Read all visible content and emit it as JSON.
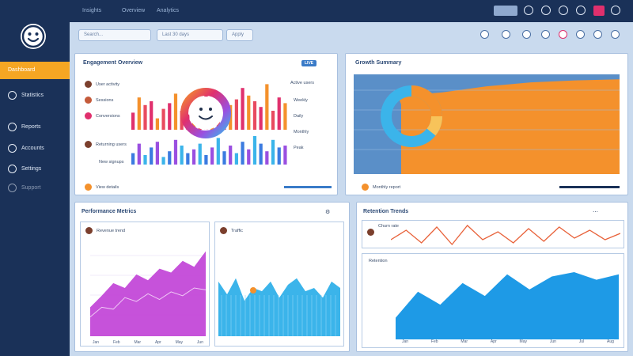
{
  "sidebar": {
    "active_label": "Dashboard",
    "items": [
      {
        "label": "Statistics",
        "icon": "circle-icon"
      },
      {
        "label": "Reports",
        "icon": "circle-icon"
      },
      {
        "label": "Accounts",
        "icon": "circle-icon"
      },
      {
        "label": "Settings",
        "icon": "circle-icon"
      },
      {
        "label": "Support",
        "icon": "circle-icon"
      }
    ]
  },
  "topbar": {
    "breadcrumb": [
      "Insights",
      "Overview",
      "Analytics"
    ],
    "buttons": [
      "search",
      "bell",
      "settings",
      "help",
      "user",
      "chat"
    ]
  },
  "filters": {
    "search_placeholder": "Search...",
    "date_range": "Last 30 days",
    "apply_label": "Apply"
  },
  "panels": {
    "top_left": {
      "title": "Engagement Overview",
      "tag": "LIVE",
      "rows": [
        "User activity",
        "Sessions",
        "Conversions",
        "Returning users",
        "New signups"
      ],
      "right_labels": [
        "Active users",
        "Weekly",
        "Daily",
        "Monthly",
        "Peak"
      ],
      "footer": "View details"
    },
    "top_right": {
      "title": "Growth Summary",
      "footer": "Monthly report"
    },
    "bottom_left": {
      "title": "Performance Metrics",
      "left_sub": "Revenue trend",
      "right_sub": "Traffic",
      "x_ticks": [
        "Jan",
        "Feb",
        "Mar",
        "Apr",
        "May",
        "Jun"
      ]
    },
    "bottom_right": {
      "title": "Retention Trends",
      "line_label": "Churn rate",
      "area_label": "Retention",
      "x_ticks": [
        "Jan",
        "Feb",
        "Mar",
        "Apr",
        "May",
        "Jun",
        "Jul",
        "Aug"
      ]
    }
  },
  "colors": {
    "sidebar": "#1a3158",
    "accent": "#f5a623",
    "magenta": "#c03fd6",
    "cyan": "#3bb4ea",
    "orange": "#f4912c",
    "panel_blue": "#5a8fc8"
  },
  "chart_data": [
    {
      "type": "bar",
      "values": [
        18,
        34,
        26,
        30,
        12,
        22,
        28,
        38,
        20,
        16,
        24,
        30,
        40,
        28,
        22,
        14,
        26,
        32,
        44,
        36,
        30,
        24,
        48,
        20,
        34,
        28
      ],
      "secondary_values": [
        12,
        22,
        10,
        18,
        24,
        8,
        14,
        26,
        20,
        12,
        16,
        22,
        10,
        18,
        28,
        14,
        20,
        12,
        24,
        16,
        30,
        22,
        14,
        26,
        18,
        20
      ]
    },
    {
      "type": "area",
      "values": [
        70,
        78,
        82,
        88,
        92,
        94,
        95
      ]
    },
    {
      "type": "pie",
      "values": [
        75,
        25
      ]
    },
    {
      "type": "area",
      "values": [
        30,
        42,
        55,
        50,
        64,
        58,
        70,
        66,
        78,
        72,
        88
      ]
    },
    {
      "type": "area",
      "values": [
        34,
        26,
        36,
        22,
        30,
        28,
        34,
        24,
        32,
        36,
        28,
        30,
        24,
        34,
        30
      ]
    },
    {
      "type": "line",
      "values": [
        40,
        52,
        36,
        56,
        34,
        58,
        40,
        50,
        36,
        54,
        38,
        56,
        42,
        52,
        40,
        48
      ]
    },
    {
      "type": "area",
      "values": [
        20,
        44,
        32,
        52,
        40,
        60,
        46,
        58,
        62,
        55,
        60
      ]
    }
  ]
}
